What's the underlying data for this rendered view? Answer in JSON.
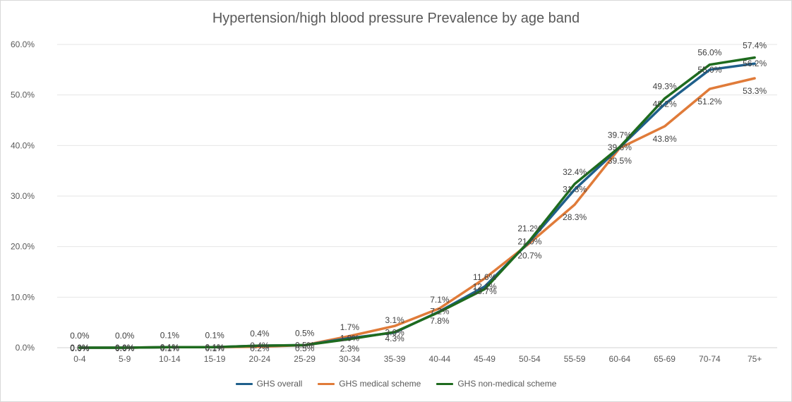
{
  "chart_data": {
    "type": "line",
    "title": "Hypertension/high blood pressure Prevalence by age band",
    "xlabel": "",
    "ylabel": "",
    "categories": [
      "0-4",
      "5-9",
      "10-14",
      "15-19",
      "20-24",
      "25-29",
      "30-34",
      "35-39",
      "40-44",
      "45-49",
      "50-54",
      "55-59",
      "60-64",
      "65-69",
      "70-74",
      "75+"
    ],
    "ylim": [
      0,
      60
    ],
    "y_ticks": [
      "0.0%",
      "10.0%",
      "20.0%",
      "30.0%",
      "40.0%",
      "50.0%",
      "60.0%"
    ],
    "grid": "horizontal",
    "legend_position": "bottom",
    "series": [
      {
        "name": "GHS overall",
        "color": "#1f5f8b",
        "values": [
          0.0,
          0.0,
          0.1,
          0.1,
          0.4,
          0.5,
          1.9,
          3.0,
          7.2,
          12.1,
          21.0,
          31.3,
          39.6,
          48.2,
          55.0,
          56.2
        ],
        "labels": [
          "0.0%",
          "0.0%",
          "0.1%",
          "0.1%",
          "0.4%",
          "0.5%",
          "1.9%",
          "3.0%",
          "7.2%",
          "12.1%",
          "21.0%",
          "31.3%",
          "39.6%",
          "48.2%",
          "55.0%",
          "56.2%"
        ]
      },
      {
        "name": "GHS medical scheme",
        "color": "#e07b39",
        "values": [
          0.0,
          0.0,
          0.1,
          0.1,
          0.2,
          0.5,
          2.3,
          4.3,
          7.8,
          13.7,
          20.7,
          28.3,
          39.5,
          43.8,
          51.2,
          53.3
        ],
        "labels": [
          "0.0%",
          "0.0%",
          "0.1%",
          "0.1%",
          "0.2%",
          "0.5%",
          "2.3%",
          "4.3%",
          "7.8%",
          "13.7%",
          "20.7%",
          "28.3%",
          "39.5%",
          "43.8%",
          "51.2%",
          "53.3%"
        ]
      },
      {
        "name": "GHS non-medical scheme",
        "color": "#1e6b1e",
        "values": [
          0.0,
          0.0,
          0.1,
          0.1,
          0.4,
          0.5,
          1.7,
          3.1,
          7.1,
          11.6,
          21.2,
          32.4,
          39.7,
          49.3,
          56.0,
          57.4
        ],
        "labels": [
          "0.0%",
          "0.0%",
          "0.1%",
          "0.1%",
          "0.4%",
          "0.5%",
          "1.7%",
          "3.1%",
          "7.1%",
          "11.6%",
          "21.2%",
          "32.4%",
          "39.7%",
          "49.3%",
          "56.0%",
          "57.4%"
        ]
      }
    ]
  }
}
